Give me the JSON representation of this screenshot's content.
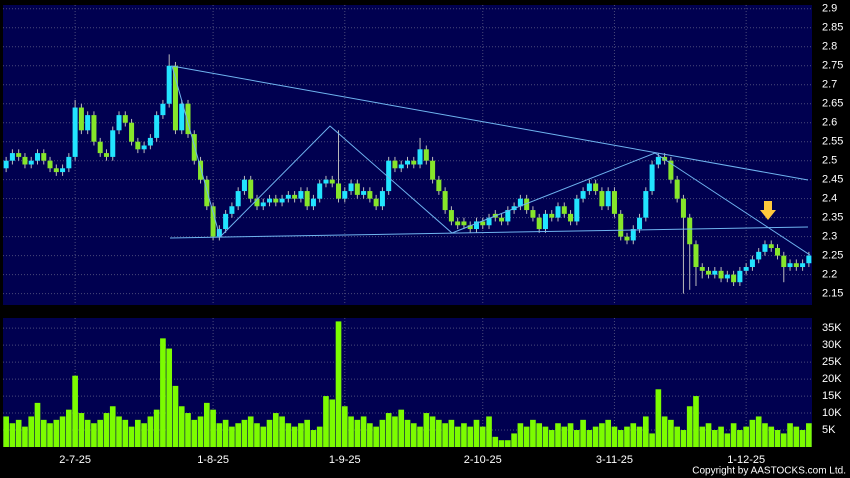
{
  "chart_data": {
    "type": "candlestick",
    "categories": [
      null,
      null,
      null,
      null,
      null,
      null,
      null,
      null,
      null,
      null,
      null,
      "2-7-25",
      null,
      null,
      null,
      null,
      null,
      null,
      null,
      null,
      null,
      null,
      null,
      null,
      null,
      null,
      null,
      null,
      null,
      null,
      null,
      null,
      null,
      "1-8-25",
      null,
      null,
      null,
      null,
      null,
      null,
      null,
      null,
      null,
      null,
      null,
      null,
      null,
      null,
      null,
      null,
      null,
      null,
      null,
      null,
      "1-9-25",
      null,
      null,
      null,
      null,
      null,
      null,
      null,
      null,
      null,
      null,
      null,
      null,
      null,
      null,
      null,
      null,
      null,
      null,
      null,
      null,
      null,
      "2-10-25",
      null,
      null,
      null,
      null,
      null,
      null,
      null,
      null,
      null,
      null,
      null,
      null,
      null,
      null,
      null,
      null,
      null,
      null,
      null,
      null,
      "3-11-25",
      null,
      null,
      null,
      null,
      null,
      null,
      null,
      null,
      null,
      null,
      null,
      null,
      null,
      null,
      null,
      null,
      null,
      null,
      null,
      null,
      "1-12-25",
      null,
      null,
      null,
      null,
      null,
      null,
      null,
      null,
      null,
      null
    ],
    "open": [
      2.48,
      2.5,
      2.52,
      2.51,
      2.49,
      2.5,
      2.52,
      2.5,
      2.48,
      2.47,
      2.48,
      2.51,
      2.64,
      2.58,
      2.62,
      2.55,
      2.52,
      2.51,
      2.58,
      2.62,
      2.6,
      2.55,
      2.53,
      2.54,
      2.56,
      2.62,
      2.65,
      2.75,
      2.58,
      2.65,
      2.57,
      2.5,
      2.45,
      2.38,
      2.3,
      2.32,
      2.36,
      2.38,
      2.42,
      2.45,
      2.4,
      2.38,
      2.39,
      2.4,
      2.39,
      2.4,
      2.41,
      2.4,
      2.42,
      2.38,
      2.4,
      2.44,
      2.45,
      2.44,
      2.4,
      2.42,
      2.44,
      2.41,
      2.42,
      2.4,
      2.38,
      2.42,
      2.5,
      2.48,
      2.49,
      2.5,
      2.49,
      2.53,
      2.5,
      2.45,
      2.42,
      2.37,
      2.34,
      2.34,
      2.33,
      2.32,
      2.34,
      2.33,
      2.36,
      2.35,
      2.34,
      2.37,
      2.38,
      2.4,
      2.37,
      2.35,
      2.32,
      2.36,
      2.35,
      2.38,
      2.36,
      2.34,
      2.4,
      2.42,
      2.44,
      2.42,
      2.38,
      2.42,
      2.36,
      2.3,
      2.29,
      2.32,
      2.35,
      2.42,
      2.49,
      2.51,
      2.5,
      2.45,
      2.4,
      2.35,
      2.28,
      2.22,
      2.21,
      2.2,
      2.21,
      2.19,
      2.2,
      2.18,
      2.21,
      2.22,
      2.24,
      2.26,
      2.28,
      2.27,
      2.25,
      2.22,
      2.23,
      2.22,
      2.23
    ],
    "high": [
      2.51,
      2.53,
      2.53,
      2.52,
      2.51,
      2.53,
      2.53,
      2.51,
      2.49,
      2.49,
      2.52,
      2.66,
      2.65,
      2.63,
      2.63,
      2.56,
      2.53,
      2.59,
      2.63,
      2.63,
      2.61,
      2.56,
      2.55,
      2.57,
      2.63,
      2.66,
      2.78,
      2.76,
      2.66,
      2.66,
      2.58,
      2.51,
      2.46,
      2.39,
      2.33,
      2.37,
      2.39,
      2.43,
      2.46,
      2.46,
      2.41,
      2.4,
      2.41,
      2.41,
      2.41,
      2.42,
      2.42,
      2.43,
      2.43,
      2.41,
      2.45,
      2.46,
      2.46,
      2.58,
      2.43,
      2.45,
      2.45,
      2.43,
      2.43,
      2.41,
      2.43,
      2.51,
      2.51,
      2.5,
      2.51,
      2.51,
      2.56,
      2.54,
      2.51,
      2.46,
      2.43,
      2.38,
      2.35,
      2.35,
      2.34,
      2.35,
      2.35,
      2.36,
      2.37,
      2.36,
      2.38,
      2.39,
      2.41,
      2.41,
      2.38,
      2.36,
      2.37,
      2.37,
      2.39,
      2.39,
      2.37,
      2.41,
      2.43,
      2.45,
      2.45,
      2.43,
      2.43,
      2.43,
      2.37,
      2.31,
      2.33,
      2.36,
      2.43,
      2.5,
      2.52,
      2.52,
      2.51,
      2.46,
      2.41,
      2.36,
      2.29,
      2.23,
      2.22,
      2.22,
      2.22,
      2.21,
      2.21,
      2.22,
      2.23,
      2.25,
      2.27,
      2.29,
      2.29,
      2.28,
      2.26,
      2.24,
      2.24,
      2.24,
      2.26
    ],
    "low": [
      2.47,
      2.49,
      2.5,
      2.48,
      2.48,
      2.49,
      2.49,
      2.47,
      2.46,
      2.46,
      2.47,
      2.5,
      2.57,
      2.57,
      2.54,
      2.51,
      2.5,
      2.5,
      2.57,
      2.59,
      2.54,
      2.52,
      2.52,
      2.53,
      2.55,
      2.61,
      2.64,
      2.57,
      2.57,
      2.56,
      2.49,
      2.44,
      2.37,
      2.29,
      2.29,
      2.31,
      2.35,
      2.37,
      2.41,
      2.39,
      2.37,
      2.37,
      2.38,
      2.38,
      2.38,
      2.39,
      2.39,
      2.39,
      2.37,
      2.37,
      2.39,
      2.43,
      2.43,
      2.39,
      2.39,
      2.41,
      2.4,
      2.4,
      2.39,
      2.37,
      2.37,
      2.41,
      2.47,
      2.47,
      2.48,
      2.48,
      2.48,
      2.49,
      2.44,
      2.41,
      2.36,
      2.33,
      2.32,
      2.32,
      2.31,
      2.31,
      2.32,
      2.32,
      2.34,
      2.33,
      2.33,
      2.36,
      2.37,
      2.36,
      2.34,
      2.31,
      2.31,
      2.34,
      2.34,
      2.35,
      2.33,
      2.33,
      2.39,
      2.41,
      2.41,
      2.37,
      2.37,
      2.35,
      2.29,
      2.28,
      2.28,
      2.31,
      2.34,
      2.41,
      2.48,
      2.49,
      2.44,
      2.39,
      2.15,
      2.16,
      2.17,
      2.19,
      2.19,
      2.19,
      2.18,
      2.18,
      2.17,
      2.17,
      2.2,
      2.21,
      2.23,
      2.25,
      2.26,
      2.24,
      2.18,
      2.21,
      2.21,
      2.21,
      2.22
    ],
    "close": [
      2.5,
      2.52,
      2.51,
      2.49,
      2.5,
      2.52,
      2.5,
      2.48,
      2.47,
      2.48,
      2.51,
      2.64,
      2.58,
      2.62,
      2.55,
      2.52,
      2.51,
      2.58,
      2.62,
      2.6,
      2.55,
      2.53,
      2.54,
      2.56,
      2.62,
      2.65,
      2.75,
      2.58,
      2.65,
      2.57,
      2.5,
      2.45,
      2.38,
      2.3,
      2.32,
      2.36,
      2.38,
      2.42,
      2.45,
      2.4,
      2.38,
      2.39,
      2.4,
      2.39,
      2.4,
      2.41,
      2.4,
      2.42,
      2.38,
      2.4,
      2.44,
      2.45,
      2.44,
      2.4,
      2.42,
      2.44,
      2.41,
      2.42,
      2.4,
      2.38,
      2.42,
      2.5,
      2.48,
      2.49,
      2.5,
      2.49,
      2.53,
      2.5,
      2.45,
      2.42,
      2.37,
      2.34,
      2.33,
      2.33,
      2.32,
      2.34,
      2.33,
      2.35,
      2.35,
      2.34,
      2.37,
      2.38,
      2.4,
      2.37,
      2.35,
      2.32,
      2.36,
      2.35,
      2.38,
      2.36,
      2.34,
      2.4,
      2.42,
      2.44,
      2.42,
      2.38,
      2.42,
      2.36,
      2.3,
      2.29,
      2.32,
      2.35,
      2.42,
      2.49,
      2.51,
      2.5,
      2.45,
      2.4,
      2.35,
      2.28,
      2.22,
      2.21,
      2.2,
      2.21,
      2.19,
      2.2,
      2.18,
      2.21,
      2.22,
      2.24,
      2.26,
      2.28,
      2.27,
      2.25,
      2.22,
      2.23,
      2.22,
      2.23,
      2.25
    ],
    "up_color": "#22e4ff",
    "down_color": "#86e62a",
    "ylim": [
      2.12,
      2.91
    ],
    "yticks": [
      2.15,
      2.2,
      2.25,
      2.3,
      2.35,
      2.4,
      2.45,
      2.5,
      2.55,
      2.6,
      2.65,
      2.7,
      2.75,
      2.8,
      2.85,
      2.9
    ],
    "grid": true,
    "volume": {
      "color": "#7cfc00",
      "values": [
        9000,
        7000,
        8000,
        6000,
        9000,
        13000,
        8000,
        7000,
        8000,
        9000,
        11000,
        21000,
        10000,
        8000,
        7000,
        8000,
        10000,
        12000,
        9000,
        8000,
        6000,
        8000,
        7000,
        9000,
        11000,
        32000,
        29000,
        18000,
        12000,
        10000,
        8000,
        9000,
        13000,
        11000,
        7000,
        8000,
        6000,
        7000,
        8000,
        9000,
        7000,
        6000,
        8000,
        10000,
        9000,
        7000,
        6000,
        7000,
        8000,
        5000,
        6000,
        15000,
        14000,
        37000,
        12000,
        9000,
        8000,
        9000,
        7000,
        6000,
        8000,
        10000,
        9000,
        11000,
        8000,
        7000,
        6000,
        10000,
        9000,
        8000,
        7000,
        8000,
        6000,
        7000,
        6000,
        8000,
        6000,
        9000,
        3000,
        2000,
        2000,
        4000,
        7000,
        6000,
        8000,
        7000,
        6000,
        5000,
        7000,
        6000,
        7000,
        5000,
        8000,
        5000,
        6000,
        7000,
        8000,
        6000,
        5000,
        6000,
        7000,
        6000,
        9000,
        4000,
        17000,
        9000,
        8000,
        6000,
        5000,
        12000,
        15000,
        6000,
        7000,
        5000,
        6000,
        4000,
        7000,
        5000,
        6000,
        8000,
        9000,
        7000,
        6000,
        5000,
        4000,
        7000,
        6000,
        5000,
        7000
      ],
      "ylim": [
        0,
        38000
      ],
      "yticks": [
        {
          "value": 5000,
          "label": "5K"
        },
        {
          "value": 10000,
          "label": "10K"
        },
        {
          "value": 15000,
          "label": "15K"
        },
        {
          "value": 20000,
          "label": "20K"
        },
        {
          "value": 25000,
          "label": "25K"
        },
        {
          "value": 30000,
          "label": "30K"
        },
        {
          "value": 35000,
          "label": "35K"
        }
      ]
    }
  },
  "footer": "Copyright by AASTOCKS.com Ltd."
}
